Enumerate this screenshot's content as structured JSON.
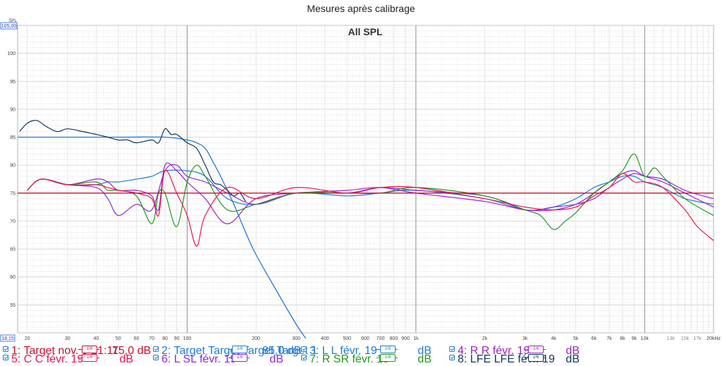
{
  "title": "Mesures après calibrage",
  "plot_label": "All SPL",
  "axis": {
    "y_unit": "SPL",
    "y_top_box": "105,00",
    "x_left_box": "18,15",
    "x_unit_suffix": "kHz"
  },
  "chart_data": {
    "type": "line",
    "title": "Mesures après calibrage",
    "subtitle": "All SPL",
    "xlabel": "",
    "ylabel": "SPL",
    "xscale": "log",
    "xlim": [
      18.15,
      20000
    ],
    "ylim": [
      50,
      105
    ],
    "x_ticks": [
      {
        "v": 20,
        "label": "20"
      },
      {
        "v": 30,
        "label": "30"
      },
      {
        "v": 40,
        "label": "40"
      },
      {
        "v": 50,
        "label": "50"
      },
      {
        "v": 60,
        "label": "60"
      },
      {
        "v": 70,
        "label": "70"
      },
      {
        "v": 80,
        "label": "80"
      },
      {
        "v": 90,
        "label": "90"
      },
      {
        "v": 100,
        "label": "100"
      },
      {
        "v": 200,
        "label": "200"
      },
      {
        "v": 300,
        "label": "300"
      },
      {
        "v": 400,
        "label": "400"
      },
      {
        "v": 500,
        "label": "500"
      },
      {
        "v": 600,
        "label": "600"
      },
      {
        "v": 700,
        "label": "700"
      },
      {
        "v": 800,
        "label": "800"
      },
      {
        "v": 900,
        "label": "900"
      },
      {
        "v": 1000,
        "label": "1k"
      },
      {
        "v": 2000,
        "label": "2k"
      },
      {
        "v": 3000,
        "label": "3k"
      },
      {
        "v": 4000,
        "label": "4k"
      },
      {
        "v": 5000,
        "label": "5k"
      },
      {
        "v": 6000,
        "label": "6k"
      },
      {
        "v": 7000,
        "label": "7k"
      },
      {
        "v": 8000,
        "label": "8k"
      },
      {
        "v": 9000,
        "label": "9k"
      },
      {
        "v": 10000,
        "label": "10k"
      },
      {
        "v": 13000,
        "label": "13k"
      },
      {
        "v": 15000,
        "label": "15k"
      },
      {
        "v": 17000,
        "label": "17k"
      },
      {
        "v": 20000,
        "label": "20kHz"
      }
    ],
    "y_ticks": [
      55,
      60,
      65,
      70,
      75,
      80,
      85,
      90,
      95,
      100
    ],
    "grid": true,
    "series": [
      {
        "name": "1: Target nov. 9 21:11",
        "color": "#c8102e",
        "x": [
          18.15,
          20000
        ],
        "y": [
          75,
          75
        ]
      },
      {
        "name": "2: Target Target Target Target 1",
        "color": "#1f7bd8",
        "x": [
          18.15,
          50,
          80,
          100,
          110,
          120,
          130,
          140,
          160,
          180,
          200,
          250,
          300,
          330
        ],
        "y": [
          85,
          85,
          85,
          84.5,
          84,
          83,
          80.5,
          78,
          73,
          68,
          64,
          57,
          51.5,
          49
        ]
      },
      {
        "name": "3: L L févr. 19",
        "color": "#1f7bd8",
        "x": [
          20,
          23,
          30,
          40,
          45,
          50,
          60,
          70,
          80,
          100,
          120,
          150,
          200,
          300,
          500,
          700,
          1000,
          2000,
          3000,
          4000,
          5000,
          6000,
          7000,
          8000,
          9000,
          10000,
          12000,
          15000,
          20000
        ],
        "y": [
          75.5,
          77.5,
          76.5,
          76.5,
          77,
          77,
          77.5,
          78,
          79,
          79,
          78,
          74,
          73,
          75,
          74.5,
          75,
          75.5,
          74,
          72,
          72.5,
          74,
          76,
          77,
          78,
          78,
          77,
          76,
          74,
          73
        ]
      },
      {
        "name": "4: R R févr. 19",
        "color": "#a020c8",
        "x": [
          20,
          23,
          30,
          40,
          45,
          50,
          60,
          70,
          75,
          80,
          90,
          100,
          120,
          150,
          200,
          300,
          500,
          700,
          1000,
          2000,
          3000,
          4000,
          5000,
          6000,
          7000,
          8000,
          9000,
          10000,
          12000,
          15000,
          20000
        ],
        "y": [
          75.5,
          77.5,
          76.5,
          77.5,
          77,
          75.5,
          75.5,
          74.5,
          72,
          80,
          79,
          77,
          74,
          69.5,
          74,
          75,
          75.5,
          76,
          75,
          73.5,
          72,
          72,
          73,
          75,
          77,
          78.5,
          79,
          78,
          77,
          75,
          72.5
        ]
      },
      {
        "name": "5: C C févr. 19",
        "color": "#e8174e",
        "x": [
          20,
          23,
          30,
          40,
          45,
          50,
          60,
          70,
          75,
          80,
          90,
          100,
          110,
          120,
          150,
          200,
          300,
          500,
          700,
          1000,
          2000,
          3000,
          4000,
          5000,
          6000,
          7000,
          8000,
          9000,
          10000,
          12000,
          15000,
          17000,
          20000
        ],
        "y": [
          75.5,
          77.5,
          76.5,
          76.5,
          76,
          75.5,
          75,
          74,
          71,
          79,
          75,
          71,
          65.5,
          71,
          76,
          74,
          76,
          75,
          76,
          76,
          74,
          72.5,
          72,
          72.5,
          74.5,
          76,
          78.5,
          77,
          77,
          76,
          72,
          69,
          66.5
        ]
      },
      {
        "name": "6: L SL févr. 19",
        "color": "#8a2be2",
        "x": [
          20,
          23,
          30,
          40,
          45,
          50,
          60,
          70,
          80,
          90,
          100,
          120,
          150,
          200,
          300,
          500,
          700,
          1000,
          2000,
          3000,
          4000,
          5000,
          6000,
          7000,
          8000,
          9000,
          10000,
          12000,
          15000,
          20000
        ],
        "y": [
          75.5,
          77.5,
          76.5,
          76,
          74,
          71,
          73,
          72,
          79,
          80,
          78,
          77,
          75,
          73,
          75,
          75,
          76,
          75.5,
          74.5,
          72,
          72.5,
          73,
          74,
          76,
          77.5,
          78.5,
          78,
          77.5,
          75.5,
          74
        ]
      },
      {
        "name": "7: R SR févr. 19",
        "color": "#1e9a1e",
        "x": [
          20,
          23,
          30,
          40,
          45,
          50,
          60,
          70,
          75,
          80,
          90,
          100,
          110,
          120,
          150,
          200,
          300,
          500,
          700,
          1000,
          2000,
          3000,
          3500,
          4000,
          4500,
          5000,
          6000,
          7000,
          8000,
          9000,
          10000,
          11000,
          12000,
          15000,
          20000
        ],
        "y": [
          75.5,
          77.5,
          76.5,
          77,
          75.5,
          75.5,
          74.5,
          69.5,
          75,
          75,
          69,
          77,
          80,
          78,
          72,
          73,
          75,
          75,
          75,
          76,
          74.5,
          72,
          71,
          68.5,
          70,
          71.5,
          75,
          77,
          79,
          82,
          78,
          79.5,
          78,
          74,
          71
        ]
      },
      {
        "name": "8: LFE LFE févr. 19",
        "color": "#13355c",
        "x": [
          18.5,
          20,
          22,
          24,
          27,
          30,
          35,
          40,
          45,
          50,
          55,
          60,
          70,
          75,
          80,
          85,
          90,
          100,
          110,
          120,
          130,
          140,
          150,
          160,
          170,
          180
        ],
        "y": [
          86,
          87.5,
          88,
          87,
          86,
          86.5,
          86,
          85.5,
          85,
          84.5,
          84.5,
          84,
          84.5,
          84,
          86.5,
          85.5,
          85.5,
          84,
          83,
          80,
          77,
          76.5,
          75.5,
          74.5,
          75,
          73.5
        ]
      }
    ]
  },
  "legend": [
    {
      "label": "1: Target nov. 9 21:11",
      "smoothing": "1/6",
      "offset": "75,0 dB",
      "color": "#c8102e",
      "row": 0,
      "col": 0
    },
    {
      "label": "2: Target Target Target Target 1",
      "smoothing": "1/6",
      "offset": "85,0 dB",
      "color": "#1f7bd8",
      "row": 0,
      "col": 1
    },
    {
      "label": "3: L L févr. 19",
      "smoothing": "1/6",
      "offset": "dB",
      "color": "#1f7bd8",
      "row": 0,
      "col": 2
    },
    {
      "label": "4: R R févr. 19",
      "smoothing": "1/6",
      "offset": "dB",
      "color": "#a020c8",
      "row": 0,
      "col": 3
    },
    {
      "label": "5: C C févr. 19",
      "smoothing": "1/6",
      "offset": "dB",
      "color": "#e8174e",
      "row": 1,
      "col": 0
    },
    {
      "label": "6: L SL févr. 19",
      "smoothing": "1/6",
      "offset": "dB",
      "color": "#8a2be2",
      "row": 1,
      "col": 1
    },
    {
      "label": "7: R SR févr. 19",
      "smoothing": "1/6",
      "offset": "dB",
      "color": "#1e9a1e",
      "row": 1,
      "col": 2
    },
    {
      "label": "8: LFE LFE févr. 19",
      "smoothing": "1/6",
      "offset": "dB",
      "color": "#13355c",
      "row": 1,
      "col": 3
    }
  ]
}
